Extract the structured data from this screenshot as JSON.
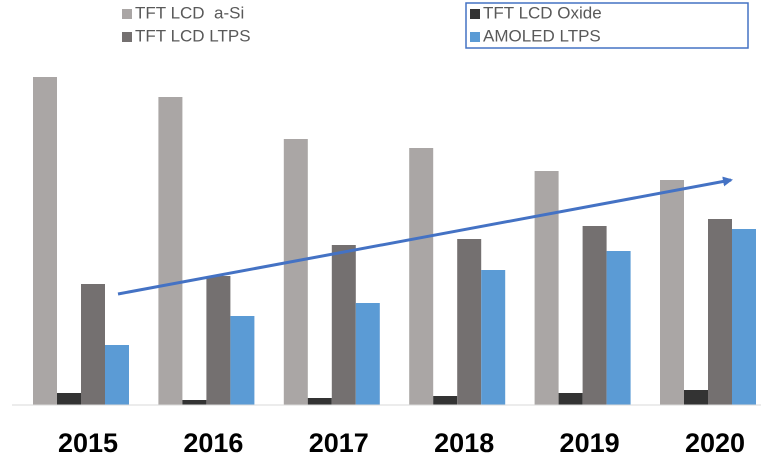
{
  "chart_data": {
    "type": "bar",
    "categories": [
      "2015",
      "2016",
      "2017",
      "2018",
      "2019",
      "2020"
    ],
    "series": [
      {
        "name": "TFT LCD  a-Si",
        "color": "#aaa6a5",
        "values": [
          328,
          308,
          266,
          257,
          234,
          225
        ]
      },
      {
        "name": "TFT LCD Oxide",
        "color": "#333333",
        "values": [
          12,
          5,
          7,
          9,
          12,
          15
        ]
      },
      {
        "name": "TFT LCD LTPS",
        "color": "#747070",
        "values": [
          121,
          129,
          160,
          166,
          179,
          186
        ]
      },
      {
        "name": "AMOLED LTPS",
        "color": "#5b9bd5",
        "values": [
          60,
          89,
          102,
          135,
          154,
          176
        ]
      }
    ],
    "ylim": [
      0,
      340
    ]
  }
}
